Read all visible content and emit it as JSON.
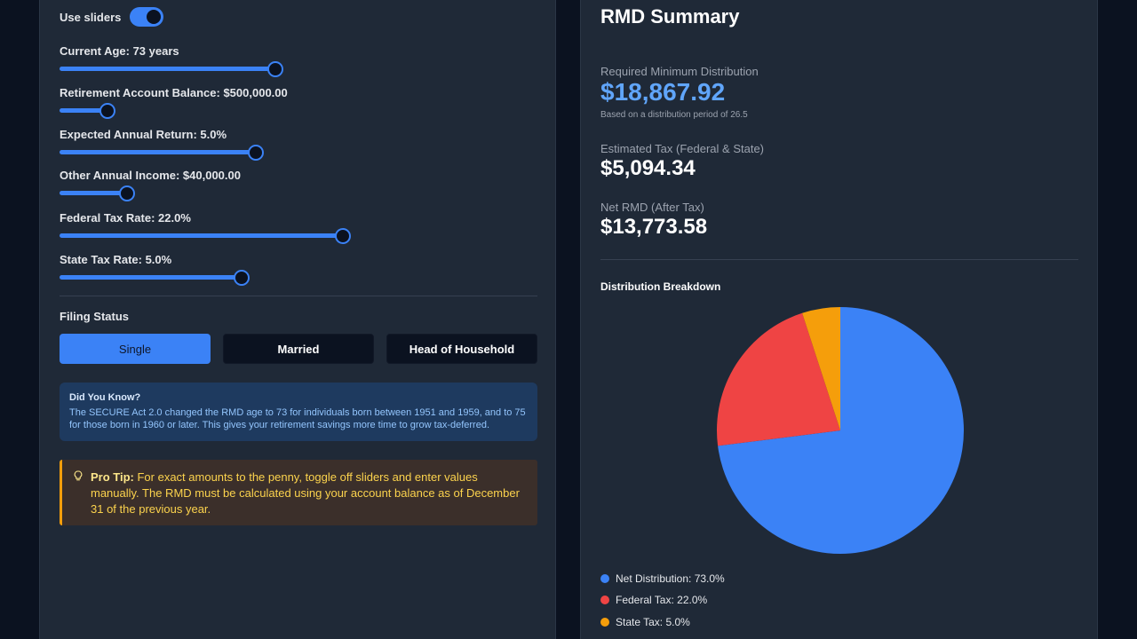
{
  "settings": {
    "use_sliders_label": "Use sliders",
    "use_sliders_on": true
  },
  "sliders": [
    {
      "label": "Current Age: 73 years",
      "level_pct": 45
    },
    {
      "label": "Retirement Account Balance: $500,000.00",
      "level_pct": 10
    },
    {
      "label": "Expected Annual Return: 5.0%",
      "level_pct": 41
    },
    {
      "label": "Other Annual Income: $40,000.00",
      "level_pct": 14
    },
    {
      "label": "Federal Tax Rate: 22.0%",
      "level_pct": 59
    },
    {
      "label": "State Tax Rate: 5.0%",
      "level_pct": 38
    }
  ],
  "filing": {
    "label": "Filing Status",
    "options": [
      "Single",
      "Married",
      "Head of Household"
    ],
    "selected": "Single"
  },
  "info": {
    "title": "Did You Know?",
    "text": "The SECURE Act 2.0 changed the RMD age to 73 for individuals born between 1951 and 1959, and to 75 for those born in 1960 or later. This gives your retirement savings more time to grow tax-deferred."
  },
  "tip": {
    "strong": "Pro Tip:",
    "text": " For exact amounts to the penny, toggle off sliders and enter values manually. The RMD must be calculated using your account balance as of December 31 of the previous year."
  },
  "summary": {
    "title": "RMD Summary",
    "rmd_label": "Required Minimum Distribution",
    "rmd_value": "$18,867.92",
    "rmd_note": "Based on a distribution period of 26.5",
    "tax_label": "Estimated Tax (Federal & State)",
    "tax_value": "$5,094.34",
    "net_label": "Net RMD (After Tax)",
    "net_value": "$13,773.58",
    "breakdown_title": "Distribution Breakdown"
  },
  "chart_data": {
    "type": "pie",
    "slices": [
      {
        "label": "Net Distribution: 73.0%",
        "value": 73.0,
        "color": "#3b82f6"
      },
      {
        "label": "Federal Tax: 22.0%",
        "value": 22.0,
        "color": "#ef4444"
      },
      {
        "label": "State Tax: 5.0%",
        "value": 5.0,
        "color": "#f59e0b"
      }
    ]
  }
}
